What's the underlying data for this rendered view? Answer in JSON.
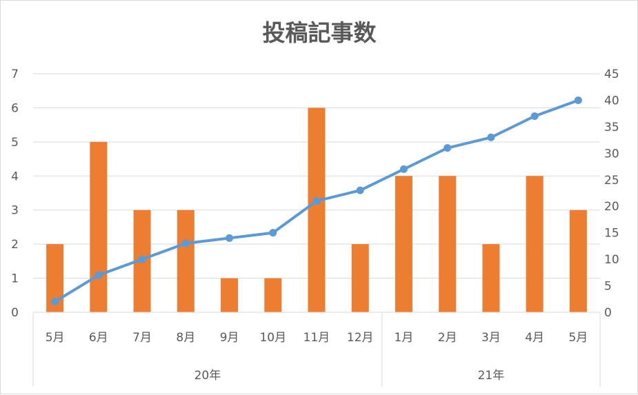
{
  "chart_data": {
    "title": "投稿記事数",
    "type": "bar+line",
    "categories": [
      "5月",
      "6月",
      "7月",
      "8月",
      "9月",
      "10月",
      "11月",
      "12月",
      "1月",
      "2月",
      "3月",
      "4月",
      "5月"
    ],
    "groups": [
      {
        "label": "20年",
        "start": 0,
        "count": 8
      },
      {
        "label": "21年",
        "start": 8,
        "count": 5
      }
    ],
    "bar_series": {
      "axis": "left",
      "color": "#ED7D31",
      "values": [
        2,
        5,
        3,
        3,
        1,
        1,
        6,
        2,
        4,
        4,
        2,
        4,
        3
      ]
    },
    "line_series": {
      "axis": "right",
      "color": "#5B9BD5",
      "values": [
        2,
        7,
        10,
        13,
        14,
        15,
        21,
        23,
        27,
        31,
        33,
        37,
        40
      ]
    },
    "y_left": {
      "min": 0,
      "max": 7,
      "step": 1
    },
    "y_right": {
      "min": 0,
      "max": 45,
      "step": 5
    },
    "grid": true,
    "legend": "none"
  }
}
